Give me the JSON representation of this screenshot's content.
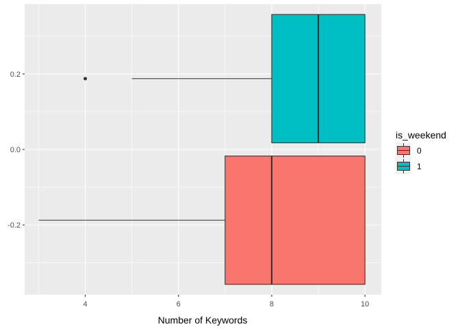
{
  "chart_data": {
    "type": "boxplot-horizontal",
    "title": "",
    "xlabel": "Number of Keywords",
    "ylabel": "",
    "xlim": [
      2.7,
      10.35
    ],
    "ylim": [
      -0.385,
      0.385
    ],
    "x_ticks": [
      4,
      6,
      8,
      10
    ],
    "x_tick_labels": [
      "4",
      "6",
      "8",
      "10"
    ],
    "y_ticks": [
      -0.2,
      0.0,
      0.2
    ],
    "y_tick_labels": [
      "-0.2",
      "0.0",
      "0.2"
    ],
    "grid": true,
    "panel_background": "#ebebeb",
    "legend": {
      "title": "is_weekend",
      "placement": "right",
      "entries": [
        {
          "label": "0",
          "color": "#f8766d"
        },
        {
          "label": "1",
          "color": "#00bfc4"
        }
      ]
    },
    "series": [
      {
        "name": "0",
        "color": "#f8766d",
        "y_center": -0.1875,
        "y_range": [
          -0.3575,
          -0.0175
        ],
        "lower_whisker": 3,
        "q1": 7,
        "median": 8,
        "q3": 10,
        "upper_whisker": 10,
        "outliers": []
      },
      {
        "name": "1",
        "color": "#00bfc4",
        "y_center": 0.1875,
        "y_range": [
          0.0175,
          0.3575
        ],
        "lower_whisker": 5,
        "q1": 8,
        "median": 9,
        "q3": 10,
        "upper_whisker": 10,
        "outliers": [
          4
        ]
      }
    ]
  }
}
